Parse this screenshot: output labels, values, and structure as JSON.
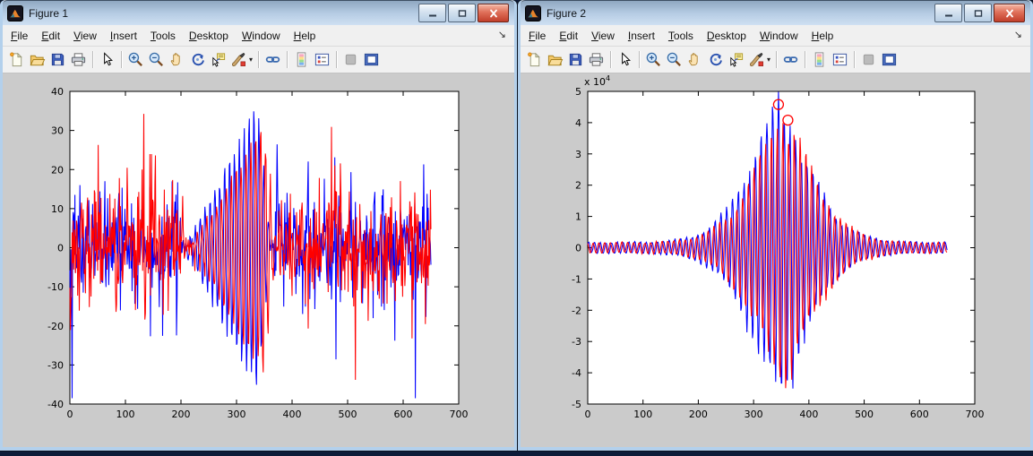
{
  "desktop": {
    "background_color": "#0d1b38"
  },
  "chrome": {
    "menu_items": [
      "File",
      "Edit",
      "View",
      "Insert",
      "Tools",
      "Desktop",
      "Window",
      "Help"
    ],
    "dock_arrow_glyph": "↘",
    "window_buttons": [
      {
        "name": "minimize",
        "glyph": "minimize-glyph"
      },
      {
        "name": "restore",
        "glyph": "restore-glyph"
      },
      {
        "name": "close",
        "glyph": "close-glyph"
      }
    ],
    "toolbar_items": [
      {
        "name": "new-figure"
      },
      {
        "name": "open-file"
      },
      {
        "name": "save-figure"
      },
      {
        "name": "print-figure"
      },
      {
        "name": "sep"
      },
      {
        "name": "arrow-cursor"
      },
      {
        "name": "sep"
      },
      {
        "name": "zoom-in"
      },
      {
        "name": "zoom-out"
      },
      {
        "name": "pan-hand"
      },
      {
        "name": "rotate-3d"
      },
      {
        "name": "data-cursor"
      },
      {
        "name": "brush",
        "has_dropdown": true
      },
      {
        "name": "sep"
      },
      {
        "name": "link-plots"
      },
      {
        "name": "sep"
      },
      {
        "name": "insert-colorbar"
      },
      {
        "name": "insert-legend"
      },
      {
        "name": "sep"
      },
      {
        "name": "hide-plot-tools",
        "disabled": true
      },
      {
        "name": "show-plot-tools"
      }
    ]
  },
  "windows": [
    {
      "title": "Figure 1"
    },
    {
      "title": "Figure 2"
    }
  ],
  "colors": {
    "titlebar_gradient_top": "#8fa7c1",
    "titlebar_gradient_bottom": "#cfe0f2",
    "window_border": "#b3d0ec",
    "close_button_red": "#c13f2b",
    "menubar_bg": "#f0f0f0",
    "toolbar_bg": "#f1f1f1",
    "figure_canvas_bg": "#cbcbcb",
    "plot_bg": "#ffffff",
    "axis_color": "#000000",
    "series_blue": "#0000ff",
    "series_red": "#ff0000",
    "marker_red": "#ff0000"
  },
  "chart_data": [
    {
      "id": "figure-1-plot",
      "type": "line",
      "title": "",
      "xlabel": "",
      "ylabel": "",
      "xlim": [
        0,
        700
      ],
      "ylim": [
        -40,
        40
      ],
      "xticks": [
        0,
        100,
        200,
        300,
        400,
        500,
        600,
        700
      ],
      "yticks": [
        -40,
        -30,
        -20,
        -10,
        0,
        10,
        20,
        30,
        40
      ],
      "grid": false,
      "box": true,
      "tick_direction": "in",
      "legend": "none",
      "n_points": 651,
      "x_range_of_data": [
        0,
        650
      ],
      "description": "Two noisy time-domain signals (blue and red, red delayed ~12 samples). Broadband noise of roughly +/-15 with occasional spikes to +/-35; a hidden oscillatory packet between x~206 and x~362 grows linearly to peak amplitude ~36 near x~340 then collapses. Values are procedurally reconstructed from the screenshot (exact sample values are not resolvable).",
      "series": [
        {
          "name": "signal-blue",
          "color": "#0000ff",
          "generator": {
            "kind": "noisy_packet",
            "seed": 42,
            "noise_sigma": 6,
            "noise_tail": 1.5,
            "noise_in_packet_factor": 0.18,
            "packet": {
              "start": 206,
              "peak": 338,
              "end": 362,
              "amplitude": 36.5,
              "period": 8.8
            },
            "clip": [
              -38.5,
              37
            ]
          }
        },
        {
          "name": "signal-red",
          "color": "#ff0000",
          "generator": {
            "kind": "noisy_packet",
            "seed": 913,
            "noise_sigma": 6,
            "noise_tail": 1.6,
            "noise_in_packet_factor": 0.18,
            "packet": {
              "start": 218,
              "peak": 348,
              "end": 372,
              "amplitude": 32.5,
              "period": 8.8
            },
            "clip": [
              -37,
              35
            ]
          }
        }
      ]
    },
    {
      "id": "figure-2-plot",
      "type": "line",
      "title": "",
      "xlabel": "",
      "ylabel": "",
      "y_scale_label": "x 10^4",
      "y_scale_factor": 10000,
      "xlim": [
        0,
        700
      ],
      "ylim": [
        -50000,
        50000
      ],
      "xticks": [
        0,
        100,
        200,
        300,
        400,
        500,
        600,
        700
      ],
      "yticks_displayed": [
        -5,
        -4,
        -3,
        -2,
        -1,
        0,
        1,
        2,
        3,
        4,
        5
      ],
      "grid": false,
      "box": true,
      "tick_direction": "in",
      "legend": "none",
      "n_points": 651,
      "x_range_of_data": [
        0,
        650
      ],
      "description": "Cross-correlation style result: two oscillatory signals (period ~10.4 samples) under a symmetric envelope peaking near lag x~350 at ~4.6e4 (blue) and ~4.1e4 (red, delayed ~8 samples); amplitude decays to ~0.2e4 ripple at the edges. Two red circle markers flag the maxima. Values are procedurally reconstructed from the screenshot.",
      "series": [
        {
          "name": "xcorr-blue",
          "color": "#0000ff",
          "generator": {
            "kind": "xcorr_envelope",
            "seed": 7,
            "center": 345,
            "peak_amplitude": 45500,
            "base_amplitude": 1700,
            "decay_scale": 75,
            "decay_power": 1.5,
            "period": 10.4,
            "amp_jitter": 0.1
          }
        },
        {
          "name": "xcorr-red",
          "color": "#ff0000",
          "generator": {
            "kind": "xcorr_envelope",
            "seed": 21,
            "center": 353,
            "peak_amplitude": 41400,
            "base_amplitude": 1600,
            "decay_scale": 75,
            "decay_power": 1.5,
            "period": 10.4,
            "amp_jitter": 0.1
          }
        }
      ],
      "markers": [
        {
          "shape": "circle",
          "color": "#ff0000",
          "x": 345,
          "y": 45800,
          "meaning": "peak of blue correlation"
        },
        {
          "shape": "circle",
          "color": "#ff0000",
          "x": 362,
          "y": 40800,
          "meaning": "peak of red correlation"
        }
      ]
    }
  ]
}
